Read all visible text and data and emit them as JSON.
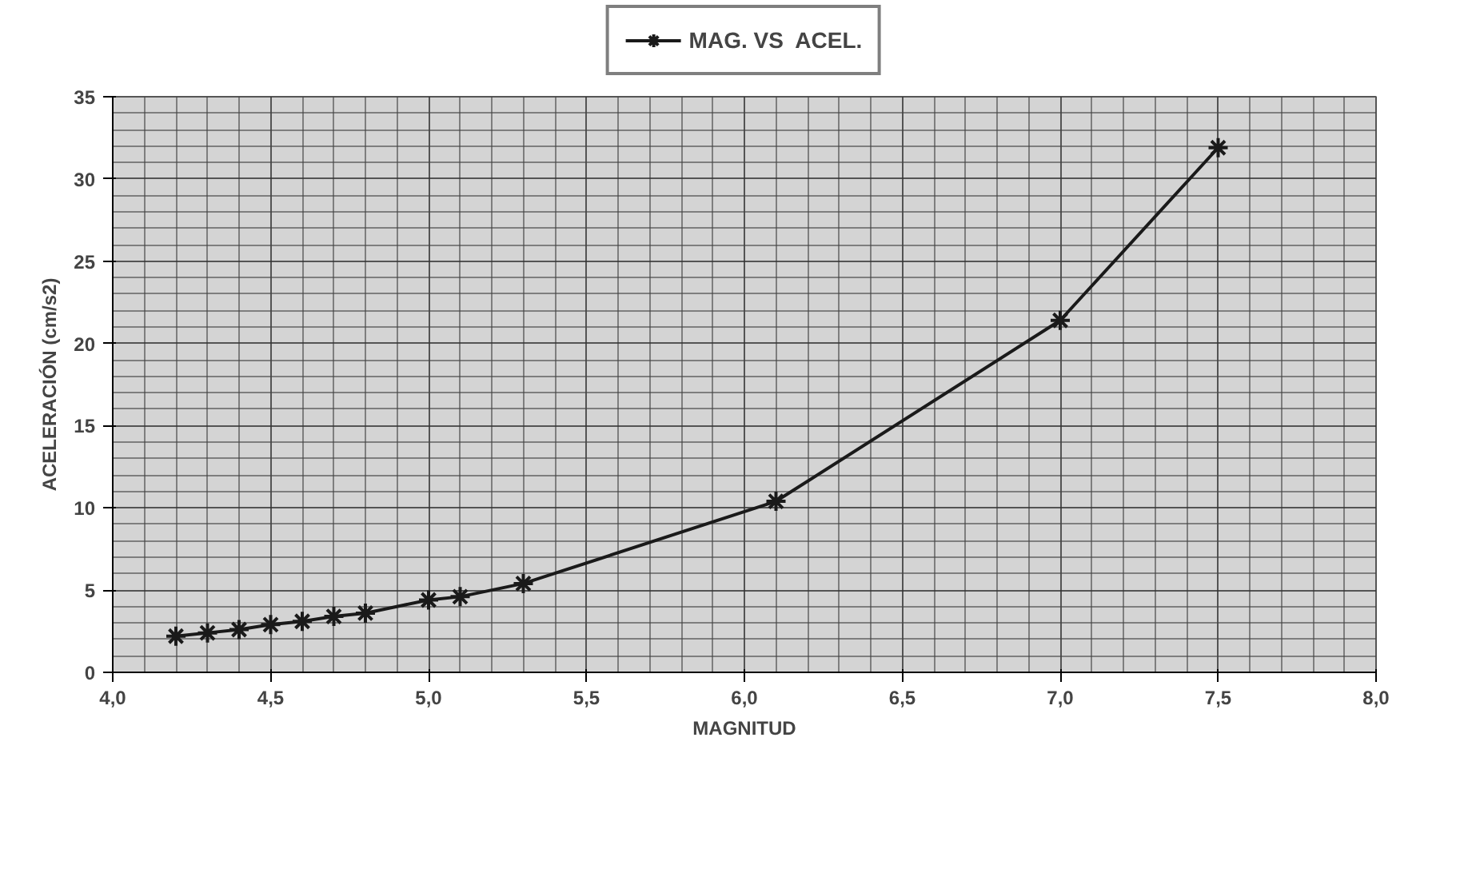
{
  "chart_data": {
    "type": "line",
    "xlabel": "MAGNITUD",
    "ylabel": "ACELERACIÓN (cm/s2)",
    "x": [
      4.2,
      4.3,
      4.4,
      4.5,
      4.6,
      4.7,
      4.8,
      5.0,
      5.1,
      5.3,
      6.1,
      7.0,
      7.5
    ],
    "series": [
      {
        "name": "MAG. VS  ACEL.",
        "color": "#1a1a1a",
        "values": [
          2.2,
          2.4,
          2.6,
          2.9,
          3.1,
          3.4,
          3.6,
          4.4,
          4.6,
          5.4,
          10.4,
          21.4,
          31.9
        ]
      }
    ],
    "xlim": [
      4.0,
      8.0
    ],
    "xticks": [
      {
        "value": 4.0,
        "label": "4,0"
      },
      {
        "value": 4.5,
        "label": "4,5"
      },
      {
        "value": 5.0,
        "label": "5,0"
      },
      {
        "value": 5.5,
        "label": "5,5"
      },
      {
        "value": 6.0,
        "label": "6,0"
      },
      {
        "value": 6.5,
        "label": "6,5"
      },
      {
        "value": 7.0,
        "label": "7,0"
      },
      {
        "value": 7.5,
        "label": "7,5"
      },
      {
        "value": 8.0,
        "label": "8,0"
      }
    ],
    "ylim": [
      0,
      35
    ],
    "yticks": [
      0,
      5,
      10,
      15,
      20,
      25,
      30,
      35
    ],
    "grid": true,
    "legend": "top",
    "marker": "cross",
    "line_style": "solid"
  }
}
